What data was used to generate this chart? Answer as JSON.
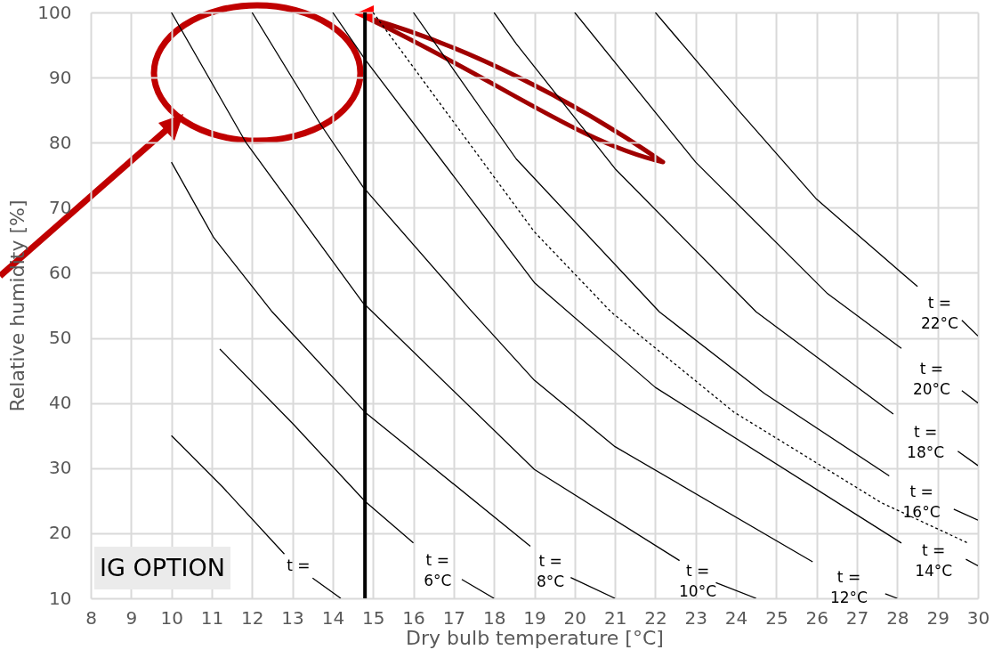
{
  "chart_data": {
    "type": "line",
    "xlabel": "Dry bulb temperature [°C]",
    "ylabel": "Relative humidity [%]",
    "xlim": [
      8,
      30
    ],
    "xticks": [
      8,
      9,
      10,
      11,
      12,
      13,
      14,
      15,
      16,
      17,
      18,
      19,
      20,
      21,
      22,
      23,
      24,
      25,
      26,
      27,
      28,
      29,
      30
    ],
    "ylim": [
      10,
      100
    ],
    "yticks": [
      10,
      20,
      30,
      40,
      50,
      60,
      70,
      80,
      90,
      100
    ],
    "grid": true,
    "annotations": [
      "IG OPTION"
    ],
    "ref_lines": [
      {
        "axis": "x",
        "value": 14.8,
        "color": "#000000"
      }
    ],
    "series": [
      {
        "name": "t =",
        "color": "#000000",
        "x": [
          10,
          11.27,
          12.8,
          13.15,
          13.5,
          14.2
        ],
        "values": [
          35,
          27.1,
          16.8,
          null,
          13.1,
          10
        ]
      },
      {
        "name": "t = 6°C",
        "color": "#000000",
        "x": [
          11.2,
          13.03,
          14.8,
          16.0,
          16.6,
          17.2,
          18.0
        ],
        "values": [
          48.3,
          36.7,
          24.9,
          18.5,
          null,
          12.9,
          10
        ]
      },
      {
        "name": "t = 8°C",
        "color": "#000000",
        "x": [
          10,
          11.05,
          12.5,
          14.8,
          18.9,
          19.4,
          19.9,
          21.0
        ],
        "values": [
          77,
          65.4,
          54,
          38.6,
          18,
          null,
          13.2,
          10
        ]
      },
      {
        "name": "t = 10°C",
        "color": "#000000",
        "x": [
          10,
          11.85,
          14.75,
          19,
          22.6,
          23.05,
          23.5,
          24.5
        ],
        "values": [
          100,
          80,
          55.4,
          29.8,
          15.8,
          null,
          12.4,
          10
        ]
      },
      {
        "name": "t = 12°C",
        "color": "#000000",
        "x": [
          12,
          13.7,
          14.75,
          17.4,
          19,
          21,
          25.9,
          26.8,
          27.7,
          28.0
        ],
        "values": [
          100,
          82.8,
          73.2,
          54.4,
          43.5,
          33.3,
          15.6,
          null,
          10.7,
          10
        ]
      },
      {
        "name": "t = 14°C",
        "color": "#000000",
        "x": [
          14,
          14.8,
          19,
          22,
          28.1,
          28.9,
          29.7,
          30
        ],
        "values": [
          100,
          92.8,
          58.5,
          42.4,
          18.5,
          null,
          16,
          15
        ]
      },
      {
        "name": "t = 16°C",
        "color": "#000000",
        "x": [
          16,
          18.55,
          22.1,
          24.7,
          27.8,
          28.6,
          29.4,
          30
        ],
        "values": [
          100,
          77.5,
          54,
          41.5,
          28.8,
          null,
          23.7,
          22
        ]
      },
      {
        "name": "t = 18°C",
        "color": "#000000",
        "x": [
          18,
          18.55,
          21,
          24.5,
          27.9,
          28.7,
          29.5,
          30
        ],
        "values": [
          100,
          95.2,
          76,
          54,
          38.3,
          null,
          32.6,
          30.4
        ]
      },
      {
        "name": "t = 20°C",
        "color": "#000000",
        "x": [
          20,
          23,
          26.27,
          28.1,
          28.85,
          29.6,
          30
        ],
        "values": [
          100,
          77,
          56.8,
          48.4,
          null,
          41.9,
          40
        ]
      },
      {
        "name": "t = 22°C",
        "color": "#000000",
        "x": [
          22,
          24.1,
          26,
          28.5,
          29.05,
          29.6,
          30
        ],
        "values": [
          100,
          84.7,
          71.3,
          57.9,
          null,
          52.7,
          50.3
        ]
      },
      {
        "color": "#000000",
        "line_style": "dashed",
        "x": [
          15,
          19,
          20.9,
          23.95,
          27.6,
          29.75
        ],
        "values": [
          100,
          66.3,
          54,
          38.6,
          24.7,
          18.5
        ]
      }
    ]
  }
}
